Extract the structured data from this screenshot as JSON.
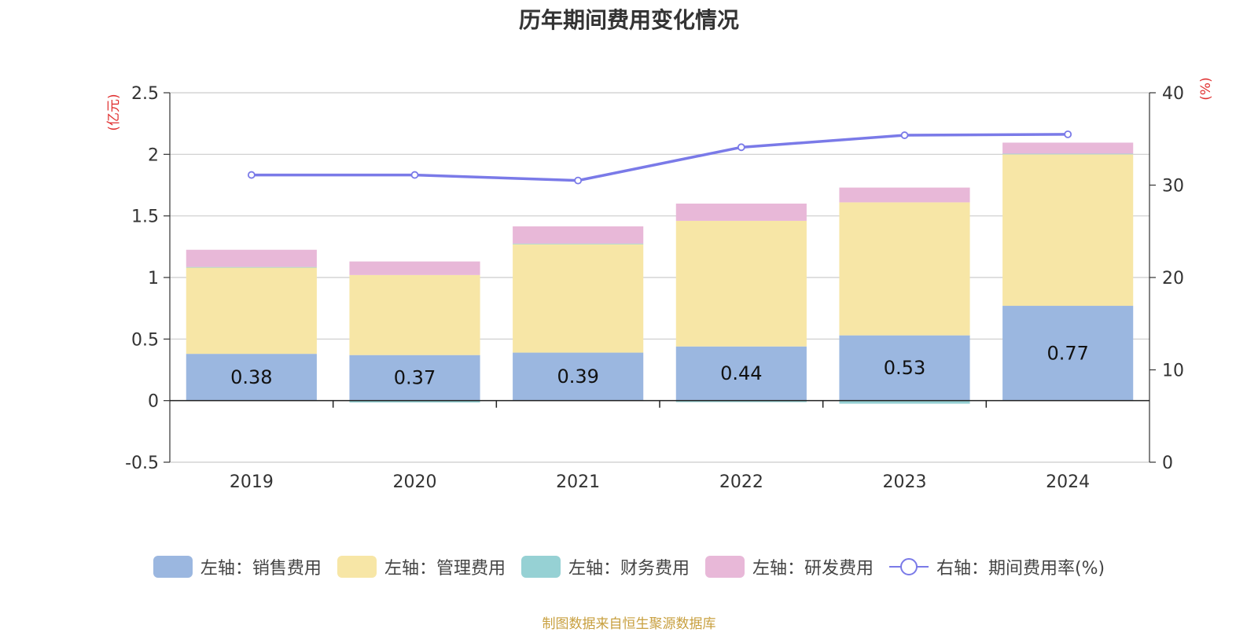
{
  "chart_data": {
    "type": "bar",
    "title": "历年期间费用变化情况",
    "categories": [
      "2019",
      "2020",
      "2021",
      "2022",
      "2023",
      "2024"
    ],
    "series": [
      {
        "name": "左轴：销售费用",
        "axis": "left",
        "values": [
          0.38,
          0.37,
          0.39,
          0.44,
          0.53,
          0.77
        ],
        "color": "#9bb7e0"
      },
      {
        "name": "左轴：管理费用",
        "axis": "left",
        "values": [
          0.7,
          0.65,
          0.88,
          1.02,
          1.08,
          1.23
        ],
        "color": "#f7e6a6"
      },
      {
        "name": "左轴：财务费用",
        "axis": "left",
        "values": [
          0.005,
          -0.015,
          0.005,
          -0.012,
          -0.025,
          0.005
        ],
        "color": "#96d1d4"
      },
      {
        "name": "左轴：研发费用",
        "axis": "left",
        "values": [
          0.14,
          0.11,
          0.14,
          0.14,
          0.12,
          0.09
        ],
        "color": "#e8b8d8"
      },
      {
        "name": "右轴：期间费用率(%)",
        "axis": "right",
        "type": "line",
        "values": [
          31.1,
          31.1,
          30.5,
          34.1,
          35.4,
          35.5
        ],
        "color": "#7a7ae8"
      }
    ],
    "bar_labels": [
      "0.38",
      "0.37",
      "0.39",
      "0.44",
      "0.53",
      "0.77"
    ],
    "left_axis": {
      "unit": "(亿元)",
      "ticks": [
        "-0.5",
        "0",
        "0.5",
        "1",
        "1.5",
        "2",
        "2.5"
      ],
      "ylim": [
        -0.5,
        2.5
      ]
    },
    "right_axis": {
      "unit": "(%)",
      "ticks": [
        "0",
        "10",
        "20",
        "30",
        "40"
      ],
      "ylim": [
        0,
        40
      ]
    },
    "grid": true,
    "legend": "bottom"
  },
  "source_text": "制图数据来自恒生聚源数据库"
}
